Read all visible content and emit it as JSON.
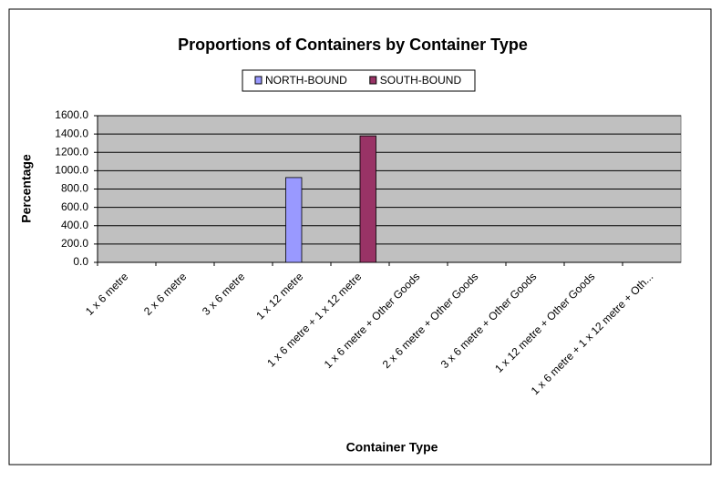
{
  "chart_data": {
    "type": "bar",
    "title": "Proportions of Containers by Container Type",
    "x_label": "Container Type",
    "y_label": "Percentage",
    "categories": [
      "1 x 6 metre",
      "2 x 6 metre",
      "3 x 6 metre",
      "1 x 12 metre",
      "1 x 6 metre + 1 x 12 metre",
      "1 x 6 metre + Other Goods",
      "2 x 6 metre + Other Goods",
      "3 x 6 metre + Other Goods",
      "1 x 12 metre + Other Goods",
      "1 x 6 metre + 1 x 12 metre + Oth..."
    ],
    "series": [
      {
        "name": "NORTH-BOUND",
        "color": "#9999ff",
        "values": [
          0,
          0,
          0,
          925,
          0,
          0,
          0,
          0,
          0,
          0
        ]
      },
      {
        "name": "SOUTH-BOUND",
        "color": "#993366",
        "values": [
          0,
          0,
          0,
          0,
          1380,
          0,
          0,
          0,
          0,
          0
        ]
      }
    ],
    "ylim": [
      0,
      1600
    ],
    "yticks": [
      {
        "value": 0,
        "label": "0.0"
      },
      {
        "value": 200,
        "label": "200.0"
      },
      {
        "value": 400,
        "label": "400.0"
      },
      {
        "value": 600,
        "label": "600.0"
      },
      {
        "value": 800,
        "label": "800.0"
      },
      {
        "value": 1000,
        "label": "1000.0"
      },
      {
        "value": 1200,
        "label": "1200.0"
      },
      {
        "value": 1400,
        "label": "1400.0"
      },
      {
        "value": 1600,
        "label": "1600.0"
      }
    ],
    "grid": true,
    "legend": "top"
  }
}
